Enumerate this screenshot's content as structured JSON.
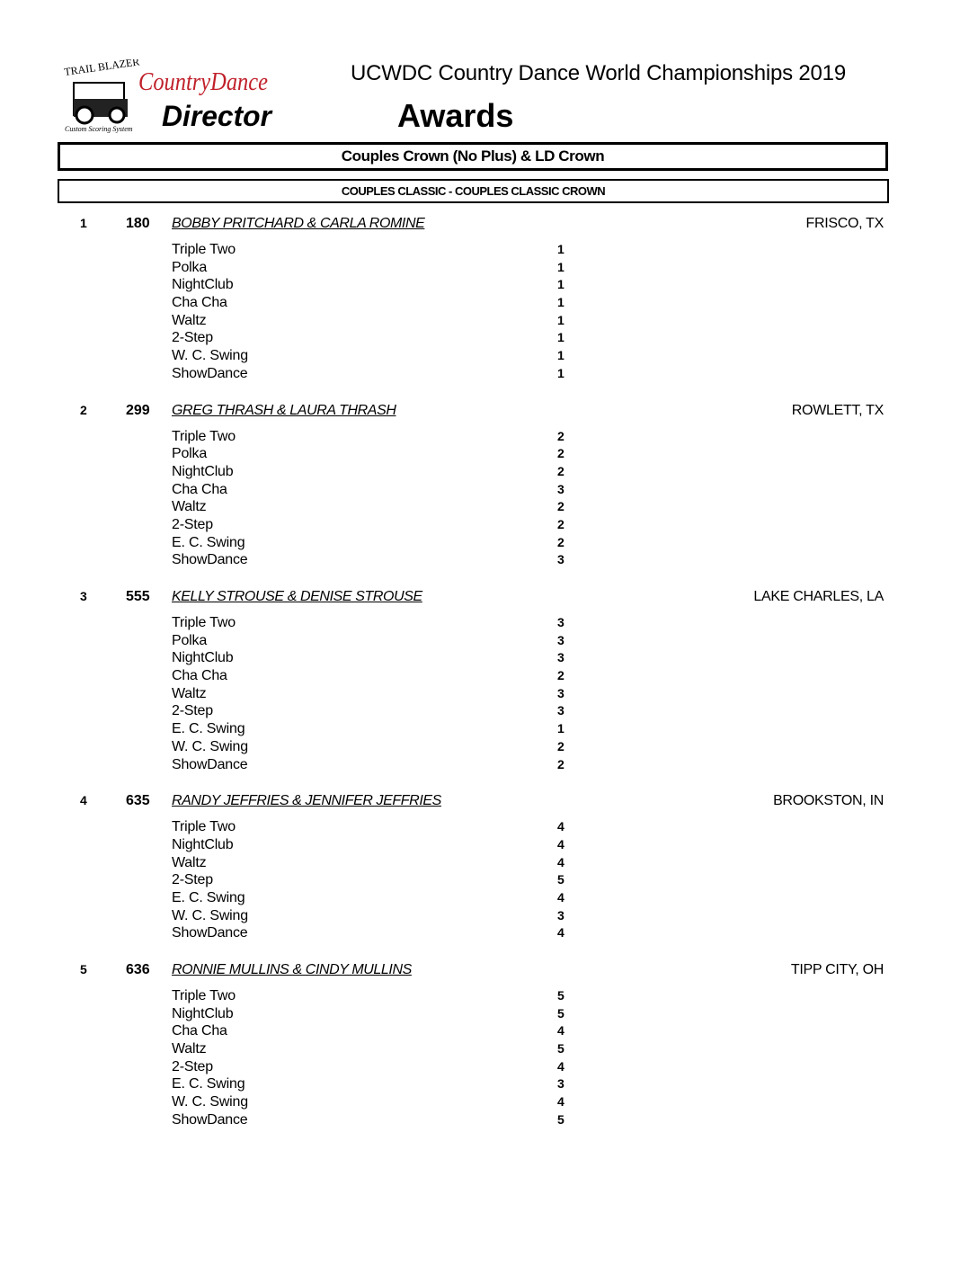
{
  "logo": {
    "trail_blazer": "TRAIL BLAZER",
    "tagline": "Custom Scoring System",
    "brand_top": "CountryDance",
    "brand_bottom": "Director"
  },
  "header": {
    "event_title": "UCWDC Country Dance World Championships 2019",
    "doc_title": "Awards"
  },
  "division": "Couples Crown (No Plus) & LD Crown",
  "category": "COUPLES CLASSIC - COUPLES CLASSIC CROWN",
  "entries": [
    {
      "place": "1",
      "number": "180",
      "name": "BOBBY PRITCHARD & CARLA ROMINE",
      "city": "FRISCO, TX",
      "dances": [
        [
          "Triple Two",
          "1"
        ],
        [
          "Polka",
          "1"
        ],
        [
          "NightClub",
          "1"
        ],
        [
          "Cha Cha",
          "1"
        ],
        [
          "Waltz",
          "1"
        ],
        [
          "2-Step",
          "1"
        ],
        [
          "W. C. Swing",
          "1"
        ],
        [
          "ShowDance",
          "1"
        ]
      ]
    },
    {
      "place": "2",
      "number": "299",
      "name": "GREG THRASH & LAURA THRASH",
      "city": "ROWLETT, TX",
      "dances": [
        [
          "Triple Two",
          "2"
        ],
        [
          "Polka",
          "2"
        ],
        [
          "NightClub",
          "2"
        ],
        [
          "Cha Cha",
          "3"
        ],
        [
          "Waltz",
          "2"
        ],
        [
          "2-Step",
          "2"
        ],
        [
          "E. C. Swing",
          "2"
        ],
        [
          "ShowDance",
          "3"
        ]
      ]
    },
    {
      "place": "3",
      "number": "555",
      "name": "KELLY STROUSE & DENISE STROUSE",
      "city": "LAKE CHARLES, LA",
      "dances": [
        [
          "Triple Two",
          "3"
        ],
        [
          "Polka",
          "3"
        ],
        [
          "NightClub",
          "3"
        ],
        [
          "Cha Cha",
          "2"
        ],
        [
          "Waltz",
          "3"
        ],
        [
          "2-Step",
          "3"
        ],
        [
          "E. C. Swing",
          "1"
        ],
        [
          "W. C. Swing",
          "2"
        ],
        [
          "ShowDance",
          "2"
        ]
      ]
    },
    {
      "place": "4",
      "number": "635",
      "name": "RANDY JEFFRIES & JENNIFER JEFFRIES",
      "city": "BROOKSTON, IN",
      "dances": [
        [
          "Triple Two",
          "4"
        ],
        [
          "NightClub",
          "4"
        ],
        [
          "Waltz",
          "4"
        ],
        [
          "2-Step",
          "5"
        ],
        [
          "E. C. Swing",
          "4"
        ],
        [
          "W. C. Swing",
          "3"
        ],
        [
          "ShowDance",
          "4"
        ]
      ]
    },
    {
      "place": "5",
      "number": "636",
      "name": "RONNIE MULLINS & CINDY MULLINS",
      "city": "TIPP CITY, OH",
      "dances": [
        [
          "Triple Two",
          "5"
        ],
        [
          "NightClub",
          "5"
        ],
        [
          "Cha Cha",
          "4"
        ],
        [
          "Waltz",
          "5"
        ],
        [
          "2-Step",
          "4"
        ],
        [
          "E. C. Swing",
          "3"
        ],
        [
          "W. C. Swing",
          "4"
        ],
        [
          "ShowDance",
          "5"
        ]
      ]
    }
  ]
}
